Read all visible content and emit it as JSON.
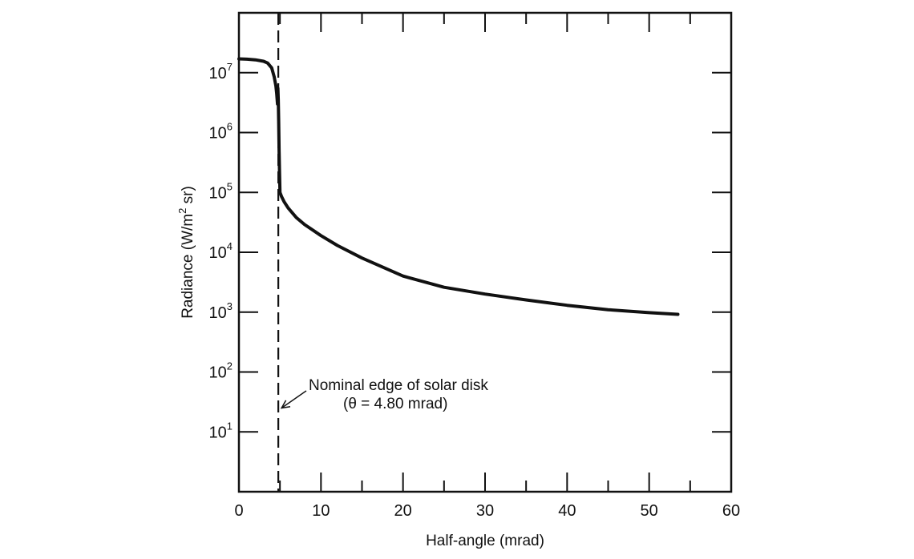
{
  "chart_data": {
    "type": "line",
    "title": "",
    "xlabel": "Half-angle (mrad)",
    "ylabel_parts": [
      "Radiance (W/m",
      "2",
      " sr)"
    ],
    "xlim": [
      0,
      60
    ],
    "ylim": [
      1,
      100000000
    ],
    "y_scale": "log",
    "grid": false,
    "x_ticks": [
      0,
      10,
      20,
      30,
      40,
      50,
      60
    ],
    "x_tick_labels": [
      "0",
      "10",
      "20",
      "30",
      "40",
      "50",
      "60"
    ],
    "y_ticks": [
      {
        "value": 10,
        "base": "10",
        "exp": "1"
      },
      {
        "value": 100,
        "base": "10",
        "exp": "2"
      },
      {
        "value": 1000,
        "base": "10",
        "exp": "3"
      },
      {
        "value": 10000,
        "base": "10",
        "exp": "4"
      },
      {
        "value": 100000,
        "base": "10",
        "exp": "5"
      },
      {
        "value": 1000000,
        "base": "10",
        "exp": "6"
      },
      {
        "value": 10000000,
        "base": "10",
        "exp": "7"
      }
    ],
    "series": [
      {
        "x": [
          0,
          1,
          2,
          3,
          3.5,
          4,
          4.3,
          4.5,
          4.6,
          4.7,
          4.75,
          4.8,
          4.85,
          4.9,
          4.95,
          5.0,
          5.2,
          5.5,
          6,
          7,
          8,
          10,
          12,
          15,
          20,
          25,
          30,
          35,
          40,
          45,
          50,
          53.5
        ],
        "y": [
          17000000,
          16800000,
          16400000,
          15500000,
          14500000,
          12000000,
          8500000,
          6000000,
          4500000,
          3000000,
          5500000,
          3500000,
          1500000,
          500000,
          200000,
          100000,
          85000,
          70000,
          55000,
          38000,
          29000,
          19000,
          13000,
          8000,
          4000,
          2600,
          2000,
          1600,
          1300,
          1100,
          980,
          920
        ]
      }
    ],
    "reference_line": {
      "x": 4.8,
      "style": "dashed"
    },
    "annotation": {
      "line1": "Nominal edge of solar disk",
      "line2": "(θ = 4.80 mrad)",
      "arrow_to": {
        "x": 5.0,
        "y": 25
      }
    }
  }
}
